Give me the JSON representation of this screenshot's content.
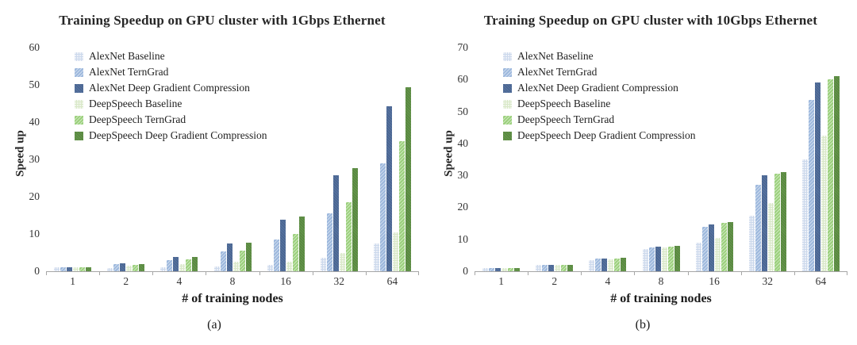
{
  "chart_data": [
    {
      "type": "bar",
      "title": "Training Speedup on GPU cluster with 1Gbps Ethernet",
      "xlabel": "# of training nodes",
      "ylabel": "Speed up",
      "caption": "(a)",
      "categories": [
        "1",
        "2",
        "4",
        "8",
        "16",
        "32",
        "64"
      ],
      "ylim": [
        0,
        60
      ],
      "yticks": [
        0,
        10,
        20,
        30,
        40,
        50,
        60
      ],
      "grid": false,
      "legend_position": "top-left",
      "series": [
        {
          "name": "AlexNet Baseline",
          "color": "#ccd9ec",
          "values": [
            1.0,
            0.9,
            1.1,
            1.3,
            1.8,
            3.7,
            7.4
          ]
        },
        {
          "name": "AlexNet TernGrad",
          "color": "#9db8dd",
          "values": [
            1.0,
            2.0,
            3.0,
            5.3,
            8.5,
            15.6,
            29.0
          ]
        },
        {
          "name": "AlexNet Deep Gradient Compression",
          "color": "#54719f",
          "values": [
            1.1,
            2.1,
            3.9,
            7.4,
            13.8,
            25.8,
            44.3
          ]
        },
        {
          "name": "DeepSpeech Baseline",
          "color": "#d9e8c8",
          "values": [
            1.0,
            1.4,
            2.0,
            2.5,
            2.5,
            5.0,
            10.5
          ]
        },
        {
          "name": "DeepSpeech TernGrad",
          "color": "#9bd07c",
          "values": [
            1.0,
            1.8,
            3.1,
            5.5,
            10.0,
            18.5,
            35.0
          ]
        },
        {
          "name": "DeepSpeech Deep Gradient Compression",
          "color": "#639549",
          "values": [
            1.1,
            2.0,
            3.9,
            7.7,
            14.7,
            27.7,
            49.3
          ]
        }
      ]
    },
    {
      "type": "bar",
      "title": "Training Speedup on GPU cluster with 10Gbps Ethernet",
      "xlabel": "# of training nodes",
      "ylabel": "Speed up",
      "caption": "(b)",
      "categories": [
        "1",
        "2",
        "4",
        "8",
        "16",
        "32",
        "64"
      ],
      "ylim": [
        0,
        70
      ],
      "yticks": [
        0,
        10,
        20,
        30,
        40,
        50,
        60,
        70
      ],
      "grid": false,
      "legend_position": "top-left",
      "series": [
        {
          "name": "AlexNet Baseline",
          "color": "#ccd9ec",
          "values": [
            1.0,
            1.9,
            3.6,
            7.0,
            9.0,
            17.5,
            35.0
          ]
        },
        {
          "name": "AlexNet TernGrad",
          "color": "#9db8dd",
          "values": [
            1.0,
            2.0,
            3.9,
            7.4,
            14.0,
            27.0,
            53.5
          ]
        },
        {
          "name": "AlexNet Deep Gradient Compression",
          "color": "#54719f",
          "values": [
            1.1,
            2.1,
            4.0,
            7.6,
            14.7,
            30.0,
            59.0
          ]
        },
        {
          "name": "DeepSpeech Baseline",
          "color": "#d9e8c8",
          "values": [
            1.0,
            1.9,
            3.8,
            7.5,
            10.5,
            21.3,
            42.5
          ]
        },
        {
          "name": "DeepSpeech TernGrad",
          "color": "#9bd07c",
          "values": [
            1.0,
            2.0,
            4.0,
            7.7,
            15.2,
            30.5,
            60.0
          ]
        },
        {
          "name": "DeepSpeech Deep Gradient Compression",
          "color": "#639549",
          "values": [
            1.1,
            2.1,
            4.2,
            8.0,
            15.5,
            31.0,
            61.0
          ]
        }
      ]
    }
  ]
}
